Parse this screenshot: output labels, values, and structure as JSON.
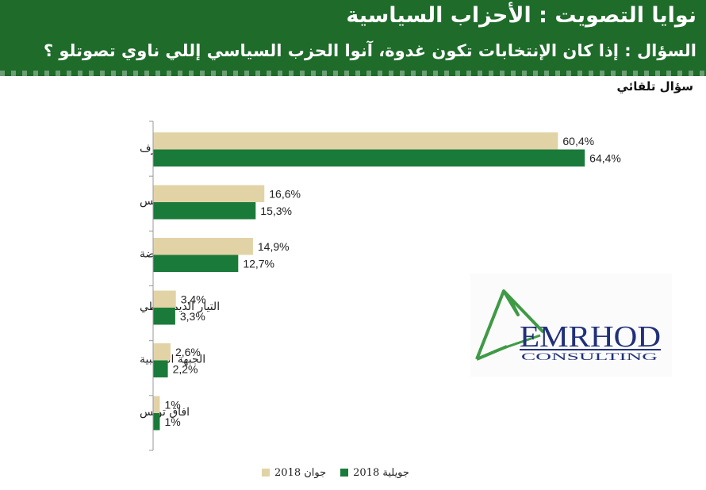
{
  "header": {
    "title": "نوايا التصويت : الأحزاب السياسية",
    "question": "السؤال : إذا كان الإنتخابات تكون غدوة، آنوا الحزب السياسي إللي ناوي تصوتلو ؟"
  },
  "subtitle": "سؤال تلقائي",
  "logo": {
    "name": "EMRHOD",
    "tagline": "CONSULTING",
    "icon": "triangle-logo-icon"
  },
  "colors": {
    "header_bg": "#1e6b2a",
    "june": "#e2d3a7",
    "july": "#1a7a3a"
  },
  "chart_data": {
    "type": "bar",
    "orientation": "horizontal",
    "categories": [
      "لايعرف",
      "نداء تونس",
      "حزب حركة النهضة",
      "التيار الديمقراطي",
      "الجبهة الشعبية",
      "افاق تونس"
    ],
    "series": [
      {
        "name": "جوان 2018",
        "values": [
          60.4,
          16.6,
          14.9,
          3.4,
          2.6,
          1
        ],
        "labels": [
          "60,4%",
          "16,6%",
          "14,9%",
          "3,4%",
          "2,6%",
          "1%"
        ],
        "color": "#e2d3a7"
      },
      {
        "name": "جويلية 2018",
        "values": [
          64.4,
          15.3,
          12.7,
          3.3,
          2.2,
          1
        ],
        "labels": [
          "64,4%",
          "15,3%",
          "12,7%",
          "3,3%",
          "2,2%",
          "1%"
        ],
        "color": "#1a7a3a"
      }
    ],
    "xlim": [
      0,
      100
    ],
    "grid": false,
    "legend": "bottom"
  }
}
